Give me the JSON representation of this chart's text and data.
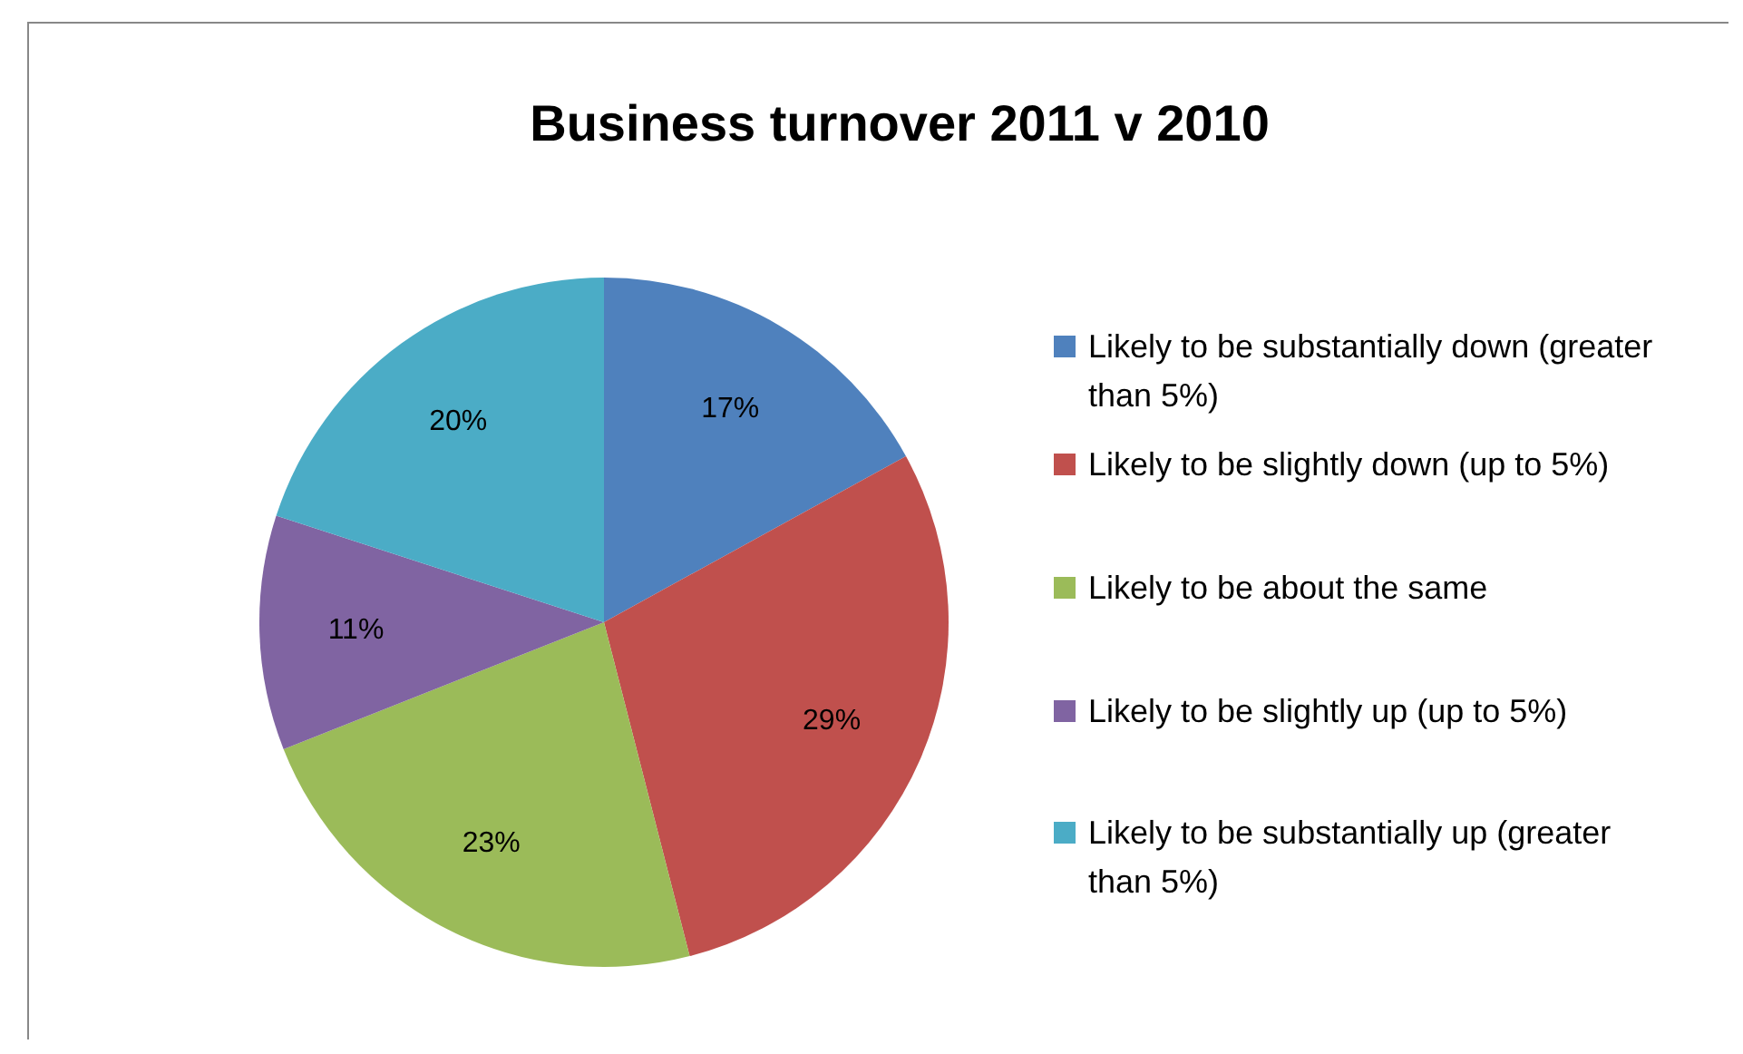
{
  "chart_data": {
    "type": "pie",
    "title": "Business turnover 2011 v 2010",
    "categories": [
      "Likely to be substantially down (greater than 5%)",
      "Likely to be slightly down (up to 5%)",
      "Likely to be about the same",
      "Likely to be slightly up (up to 5%)",
      "Likely to be substantially up (greater than 5%)"
    ],
    "values": [
      17,
      29,
      23,
      11,
      20
    ],
    "colors": [
      "#4f81bd",
      "#c0504d",
      "#9bbb59",
      "#8064a2",
      "#4bacc6"
    ],
    "value_labels": [
      "17%",
      "29%",
      "23%",
      "11%",
      "20%"
    ],
    "legend": "right"
  }
}
